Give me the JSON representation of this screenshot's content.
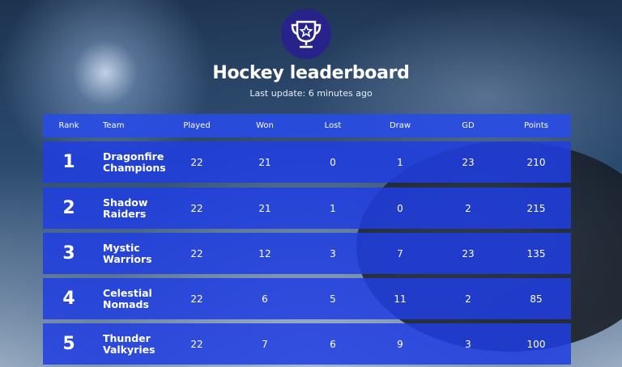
{
  "header": {
    "title": "Hockey leaderboard",
    "subtitle": "Last update: 6 minutes ago"
  },
  "table": {
    "columns": [
      "Rank",
      "Team",
      "Played",
      "Won",
      "Lost",
      "Draw",
      "GD",
      "Points"
    ],
    "rows": [
      [
        1,
        "Dragonfire Champions",
        22,
        21,
        0,
        1,
        23,
        210
      ],
      [
        2,
        "Shadow Raiders",
        22,
        21,
        1,
        0,
        2,
        215
      ],
      [
        3,
        "Mystic Warriors",
        22,
        12,
        3,
        7,
        23,
        135
      ],
      [
        4,
        "Celestial Nomads",
        22,
        6,
        5,
        11,
        2,
        85
      ],
      [
        5,
        "Thunder Valkyries",
        22,
        7,
        6,
        9,
        3,
        100
      ]
    ]
  }
}
